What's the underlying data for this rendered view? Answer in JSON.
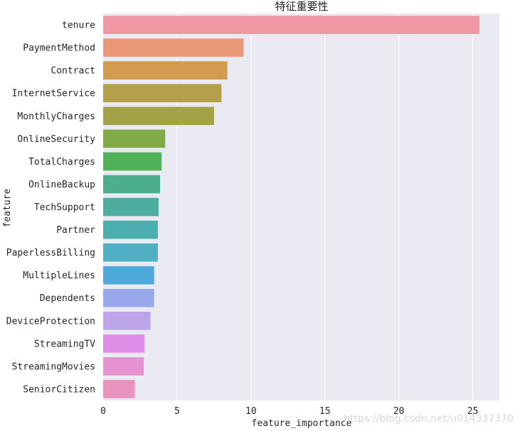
{
  "chart_data": {
    "type": "bar",
    "orientation": "horizontal",
    "title": "特征重要性",
    "xlabel": "feature_importance",
    "ylabel": "feature",
    "xlim": [
      0,
      26.8
    ],
    "xticks": [
      0,
      5,
      10,
      15,
      20,
      25
    ],
    "grid": true,
    "background": "#eaeaf2",
    "categories": [
      "tenure",
      "PaymentMethod",
      "Contract",
      "InternetService",
      "MonthlyCharges",
      "OnlineSecurity",
      "TotalCharges",
      "OnlineBackup",
      "TechSupport",
      "Partner",
      "PaperlessBilling",
      "MultipleLines",
      "Dependents",
      "DeviceProtection",
      "StreamingTV",
      "StreamingMovies",
      "SeniorCitizen"
    ],
    "values": [
      25.45,
      9.5,
      8.4,
      8.0,
      7.5,
      4.2,
      3.95,
      3.85,
      3.75,
      3.7,
      3.7,
      3.45,
      3.45,
      3.2,
      2.8,
      2.75,
      2.15
    ],
    "colors": [
      "#ef97a2",
      "#e99876",
      "#d29b4d",
      "#b49f4b",
      "#a2a247",
      "#81ab47",
      "#4fb05a",
      "#4dae8d",
      "#4dad9f",
      "#4bafaf",
      "#4eb0c2",
      "#4eaadb",
      "#97a9ea",
      "#bca4e9",
      "#dd8fe7",
      "#e691d1",
      "#e893bd"
    ]
  },
  "watermark": "https://blog.csdn.net/u014337370"
}
